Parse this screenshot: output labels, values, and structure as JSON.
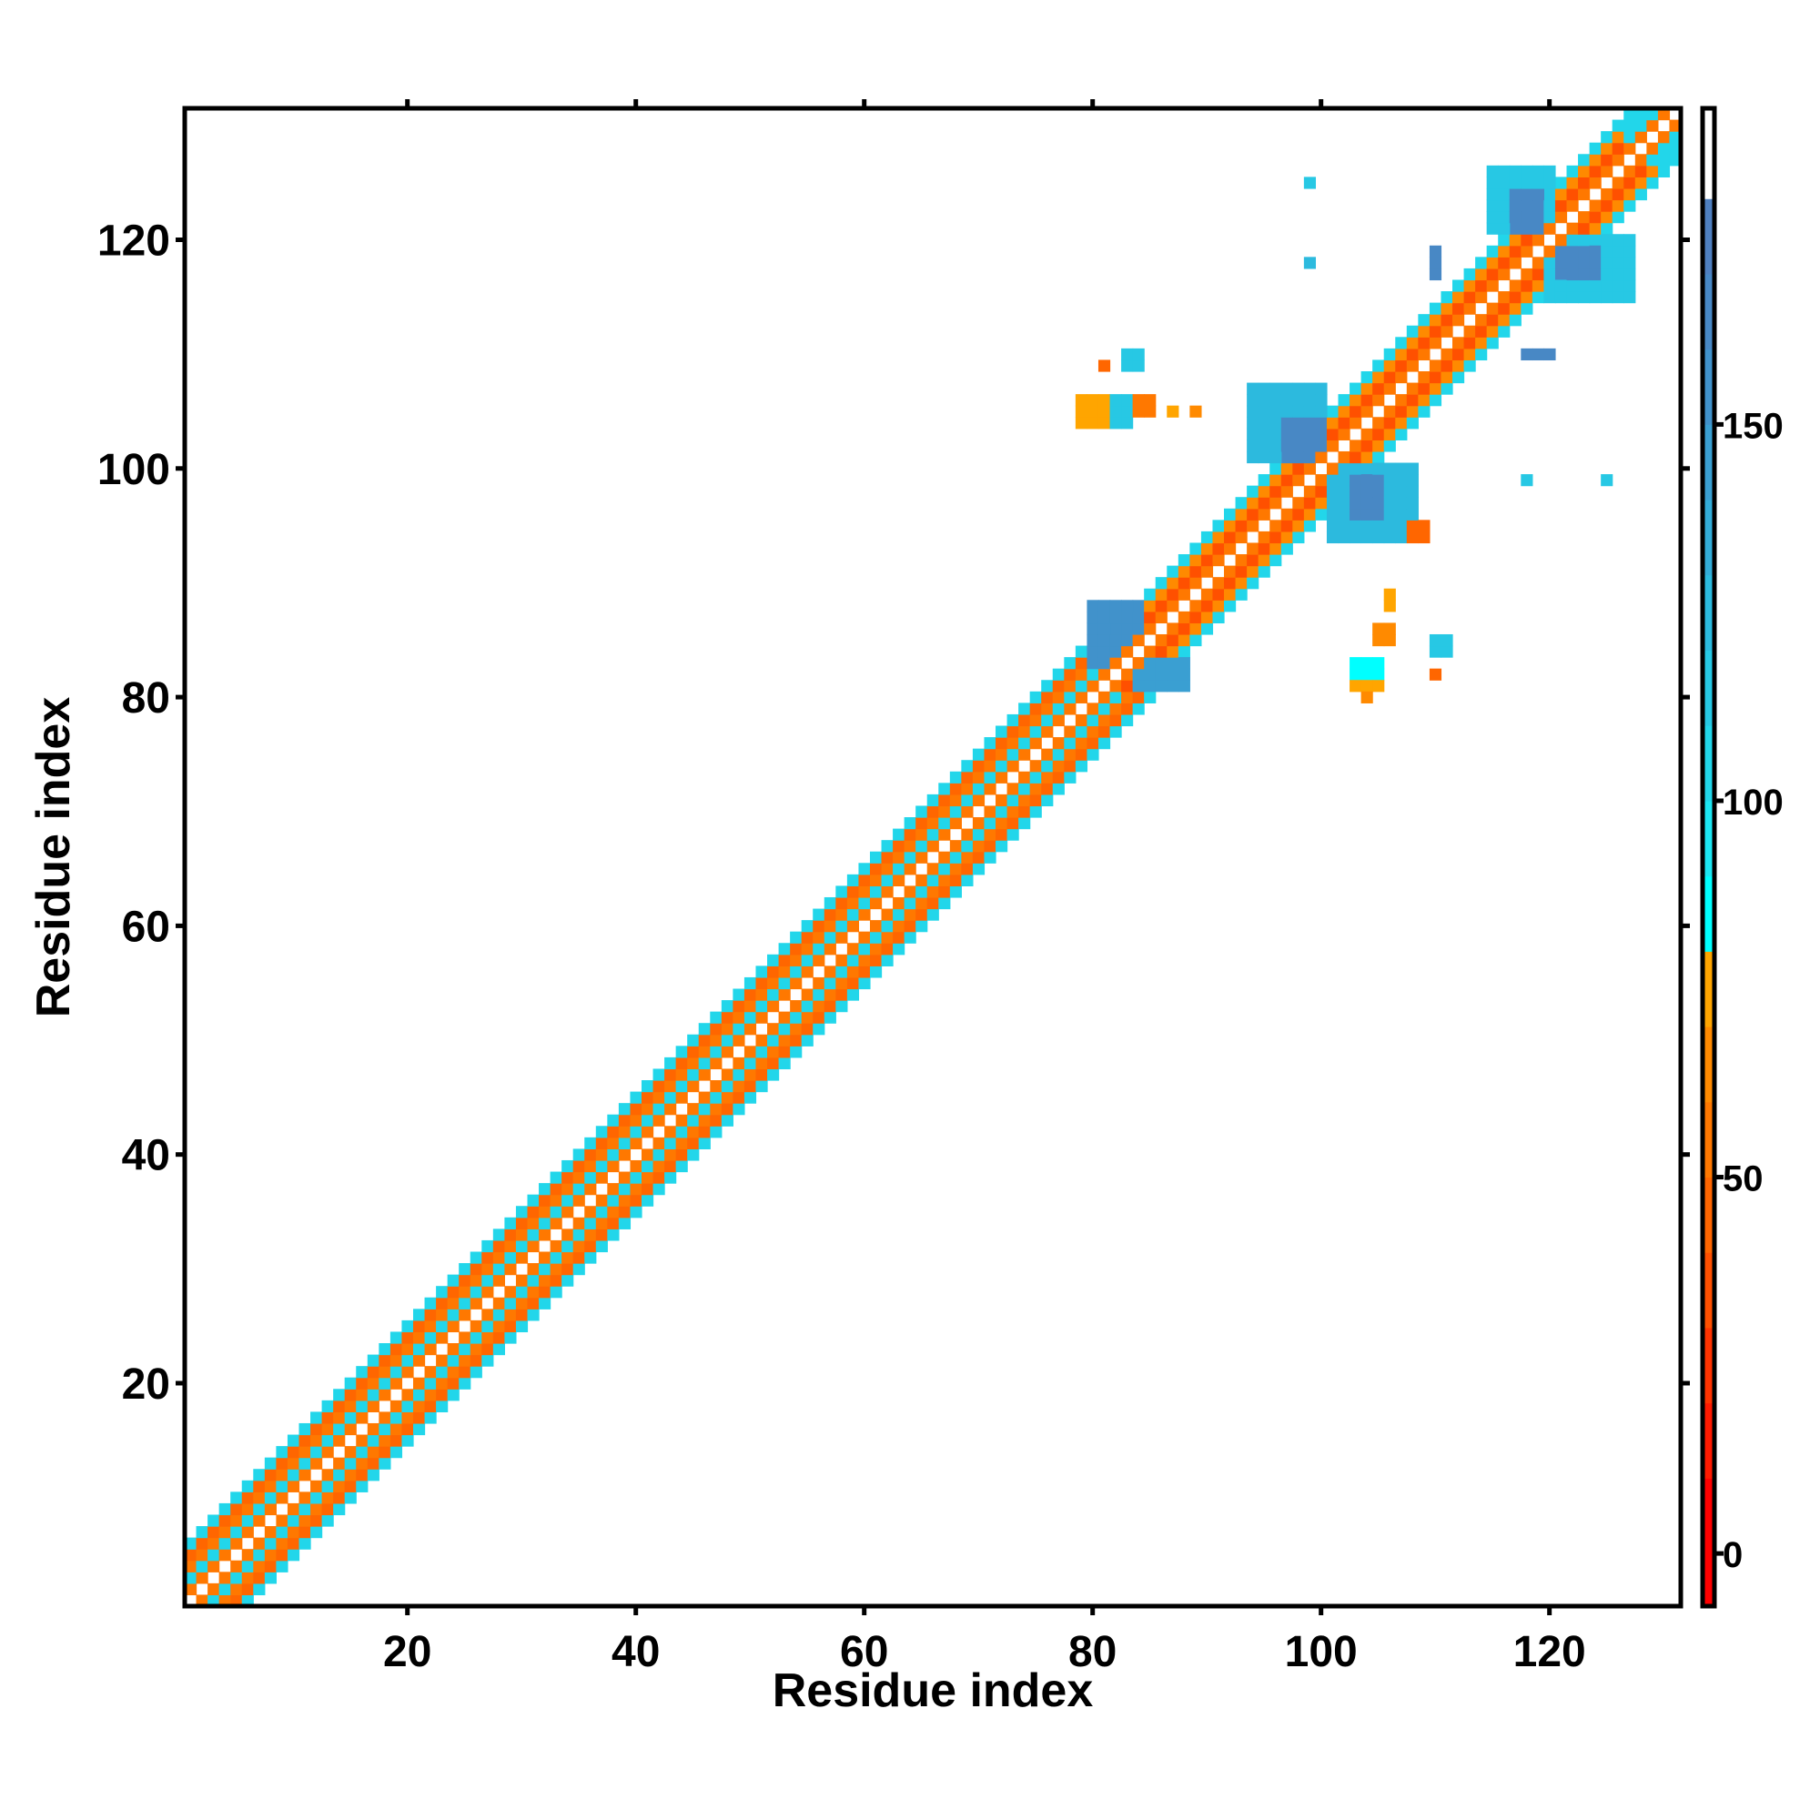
{
  "chart_data": {
    "type": "heatmap",
    "title": "",
    "xlabel": "Residue index",
    "ylabel": "Residue index",
    "xlim": [
      0.5,
      131.5
    ],
    "ylim": [
      0.5,
      131.5
    ],
    "n_residues": 131,
    "xticks": [
      20,
      40,
      60,
      80,
      100,
      120
    ],
    "yticks": [
      20,
      40,
      60,
      80,
      100,
      120
    ],
    "xtick_labels": [
      "20",
      "40",
      "60",
      "80",
      "100",
      "120"
    ],
    "ytick_labels": [
      "20",
      "40",
      "60",
      "80",
      "100",
      "120"
    ],
    "colorbar": {
      "range": [
        -7,
        192
      ],
      "ticks": [
        0,
        50,
        100,
        150
      ],
      "tick_labels": [
        "0",
        "50",
        "100",
        "150"
      ],
      "levels": [
        {
          "min": -10,
          "max": 10,
          "color": "#ff0000"
        },
        {
          "min": 10,
          "max": 20,
          "color": "#ff1a00"
        },
        {
          "min": 20,
          "max": 30,
          "color": "#ff3300"
        },
        {
          "min": 30,
          "max": 40,
          "color": "#ff5000"
        },
        {
          "min": 40,
          "max": 50,
          "color": "#ff6600"
        },
        {
          "min": 50,
          "max": 60,
          "color": "#ff7800"
        },
        {
          "min": 60,
          "max": 70,
          "color": "#ff8a00"
        },
        {
          "min": 70,
          "max": 80,
          "color": "#ffa500"
        },
        {
          "min": 80,
          "max": 90,
          "color": "#00ffff"
        },
        {
          "min": 90,
          "max": 100,
          "color": "#1ce6f2"
        },
        {
          "min": 100,
          "max": 110,
          "color": "#22d6ea"
        },
        {
          "min": 110,
          "max": 120,
          "color": "#27c8e4"
        },
        {
          "min": 120,
          "max": 130,
          "color": "#2cbade"
        },
        {
          "min": 130,
          "max": 140,
          "color": "#33acd8"
        },
        {
          "min": 140,
          "max": 150,
          "color": "#3a9fd2"
        },
        {
          "min": 150,
          "max": 160,
          "color": "#4192cb"
        },
        {
          "min": 160,
          "max": 170,
          "color": "#4888c5"
        },
        {
          "min": 170,
          "max": 180,
          "color": "#4f80c0"
        },
        {
          "min": 180,
          "max": 200,
          "color": "#ffffff"
        }
      ]
    },
    "diagonal_band": [
      {
        "from": 1,
        "to": 80,
        "offset_values": [
          190,
          58,
          100,
          55,
          40,
          105
        ]
      },
      {
        "from": 81,
        "to": 131,
        "offset_values": [
          190,
          55,
          30,
          62,
          105
        ]
      }
    ],
    "patches": [
      {
        "x": [
          80,
          84
        ],
        "y": [
          83,
          88
        ],
        "value": 150
      },
      {
        "x": [
          84,
          88
        ],
        "y": [
          81,
          83
        ],
        "value": 140
      },
      {
        "x": [
          94,
          100
        ],
        "y": [
          101,
          107
        ],
        "value": 125
      },
      {
        "x": [
          97,
          100
        ],
        "y": [
          101,
          104
        ],
        "value": 160
      },
      {
        "x": [
          101,
          108
        ],
        "y": [
          94,
          100
        ],
        "value": 125
      },
      {
        "x": [
          103,
          105
        ],
        "y": [
          96,
          99
        ],
        "value": 160
      },
      {
        "x": [
          79,
          81
        ],
        "y": [
          104,
          106
        ],
        "value": 72
      },
      {
        "x": [
          82,
          83
        ],
        "y": [
          104,
          106
        ],
        "value": 110
      },
      {
        "x": [
          84,
          85
        ],
        "y": [
          105,
          106
        ],
        "value": 50
      },
      {
        "x": [
          83,
          84
        ],
        "y": [
          109,
          110
        ],
        "value": 110
      },
      {
        "x": [
          81,
          81
        ],
        "y": [
          109,
          109
        ],
        "value": 45
      },
      {
        "x": [
          87,
          87
        ],
        "y": [
          105,
          105
        ],
        "value": 72
      },
      {
        "x": [
          89,
          89
        ],
        "y": [
          105,
          105
        ],
        "value": 60
      },
      {
        "x": [
          103,
          105
        ],
        "y": [
          82,
          83
        ],
        "value": 85
      },
      {
        "x": [
          103,
          105
        ],
        "y": [
          81,
          81
        ],
        "value": 72
      },
      {
        "x": [
          104,
          104
        ],
        "y": [
          80,
          80
        ],
        "value": 60
      },
      {
        "x": [
          105,
          106
        ],
        "y": [
          85,
          86
        ],
        "value": 60
      },
      {
        "x": [
          106,
          106
        ],
        "y": [
          88,
          89
        ],
        "value": 72
      },
      {
        "x": [
          110,
          110
        ],
        "y": [
          82,
          82
        ],
        "value": 45
      },
      {
        "x": [
          110,
          111
        ],
        "y": [
          84,
          85
        ],
        "value": 110
      },
      {
        "x": [
          108,
          109
        ],
        "y": [
          94,
          95
        ],
        "value": 40
      },
      {
        "x": [
          115,
          120
        ],
        "y": [
          121,
          126
        ],
        "value": 115
      },
      {
        "x": [
          117,
          119
        ],
        "y": [
          121,
          124
        ],
        "value": 160
      },
      {
        "x": [
          120,
          127
        ],
        "y": [
          115,
          120
        ],
        "value": 115
      },
      {
        "x": [
          121,
          124
        ],
        "y": [
          117,
          119
        ],
        "value": 160
      },
      {
        "x": [
          99,
          99
        ],
        "y": [
          125,
          125
        ],
        "value": 110
      },
      {
        "x": [
          99,
          99
        ],
        "y": [
          118,
          118
        ],
        "value": 120
      },
      {
        "x": [
          110,
          110
        ],
        "y": [
          117,
          119
        ],
        "value": 160
      },
      {
        "x": [
          118,
          120
        ],
        "y": [
          110,
          110
        ],
        "value": 160
      },
      {
        "x": [
          118,
          118
        ],
        "y": [
          99,
          99
        ],
        "value": 110
      },
      {
        "x": [
          125,
          125
        ],
        "y": [
          99,
          99
        ],
        "value": 110
      },
      {
        "x": [
          127,
          131
        ],
        "y": [
          128,
          131
        ],
        "value": 105
      },
      {
        "x": [
          128,
          131
        ],
        "y": [
          127,
          129
        ],
        "value": 105
      }
    ]
  }
}
